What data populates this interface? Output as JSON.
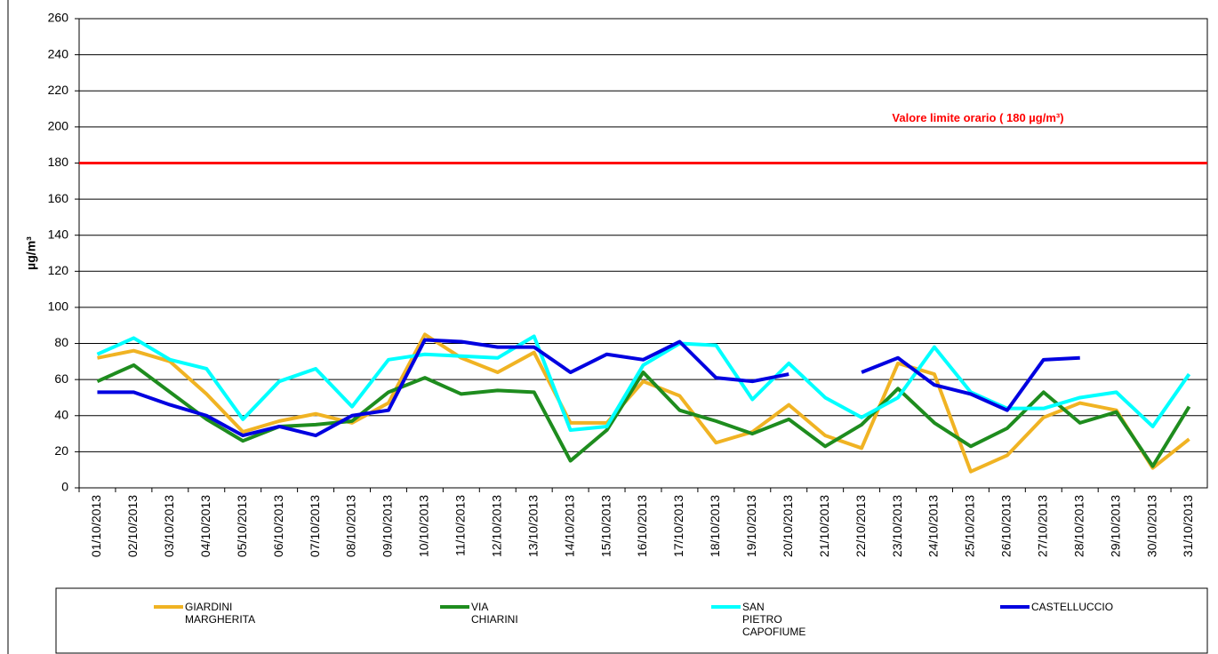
{
  "chart_data": {
    "type": "line",
    "y_label": "µg/m³",
    "annotation": "Valore limite orario ( 180 µg/m³)",
    "limit_line": 180,
    "limit_color": "#ff0000",
    "categories": [
      "01/10/2013",
      "02/10/2013",
      "03/10/2013",
      "04/10/2013",
      "05/10/2013",
      "06/10/2013",
      "07/10/2013",
      "08/10/2013",
      "09/10/2013",
      "10/10/2013",
      "11/10/2013",
      "12/10/2013",
      "13/10/2013",
      "14/10/2013",
      "15/10/2013",
      "16/10/2013",
      "17/10/2013",
      "18/10/2013",
      "19/10/2013",
      "20/10/2013",
      "21/10/2013",
      "22/10/2013",
      "23/10/2013",
      "24/10/2013",
      "25/10/2013",
      "26/10/2013",
      "27/10/2013",
      "28/10/2013",
      "29/10/2013",
      "30/10/2013",
      "31/10/2013"
    ],
    "series": [
      {
        "name": "GIARDINI MARGHERITA",
        "color": "#f0b323",
        "values": [
          72,
          76,
          70,
          52,
          31,
          37,
          41,
          36,
          47,
          85,
          72,
          64,
          75,
          36,
          36,
          59,
          51,
          25,
          31,
          46,
          29,
          22,
          69,
          63,
          9,
          18,
          39,
          47,
          43,
          11,
          27
        ]
      },
      {
        "name": "VIA CHIARINI",
        "color": "#1e8c1e",
        "values": [
          59,
          68,
          53,
          38,
          26,
          34,
          35,
          37,
          53,
          61,
          52,
          54,
          53,
          15,
          32,
          64,
          43,
          37,
          30,
          38,
          23,
          35,
          55,
          36,
          23,
          33,
          53,
          36,
          42,
          12,
          45
        ]
      },
      {
        "name": "SAN PIETRO CAPOFIUME",
        "color": "#00ffff",
        "values": [
          74,
          83,
          71,
          66,
          38,
          59,
          66,
          45,
          71,
          74,
          73,
          72,
          84,
          32,
          34,
          68,
          80,
          79,
          49,
          69,
          50,
          39,
          50,
          78,
          53,
          44,
          44,
          50,
          53,
          34,
          63
        ]
      },
      {
        "name": "CASTELLUCCIO",
        "color": "#0000e0",
        "values": [
          53,
          53,
          46,
          40,
          29,
          34,
          29,
          40,
          43,
          82,
          81,
          78,
          78,
          64,
          74,
          71,
          81,
          61,
          59,
          63,
          null,
          64,
          72,
          57,
          52,
          43,
          71,
          72,
          null,
          null,
          null
        ]
      }
    ],
    "ylim": [
      0,
      260
    ],
    "yticks": [
      0,
      20,
      40,
      60,
      80,
      100,
      120,
      140,
      160,
      180,
      200,
      220,
      240,
      260
    ],
    "grid": true
  }
}
